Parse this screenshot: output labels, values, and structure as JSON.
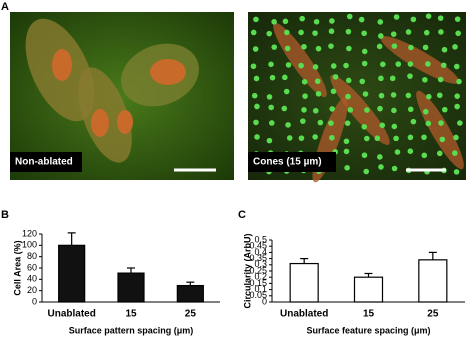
{
  "panels": [
    "A",
    "B",
    "C"
  ],
  "images": [
    {
      "caption": "Non-ablated"
    },
    {
      "caption": "Cones (15 µm)"
    }
  ],
  "chart_data": [
    {
      "type": "bar",
      "ylabel": "Cell Area (%)",
      "xlabel": "Surface pattern spacing (μm)",
      "categories": [
        "Unablated",
        "15",
        "25"
      ],
      "values": [
        100,
        51,
        29
      ],
      "errors": [
        22,
        9,
        6
      ],
      "color": "#111111",
      "ylim": [
        0,
        120
      ],
      "yticks": [
        0,
        20,
        40,
        60,
        80,
        100,
        120
      ]
    },
    {
      "type": "bar",
      "ylabel": "Circularity (ArbU)",
      "xlabel": "Surface feature spacing (μm)",
      "categories": [
        "Unablated",
        "15",
        "25"
      ],
      "values": [
        0.31,
        0.2,
        0.34
      ],
      "errors": [
        0.04,
        0.03,
        0.06
      ],
      "color": "#ffffff",
      "ylim": [
        0,
        0.5
      ],
      "yticks": [
        0,
        0.05,
        0.1,
        0.15,
        0.2,
        0.25,
        0.3,
        0.35,
        0.4,
        0.45,
        0.5
      ]
    }
  ]
}
